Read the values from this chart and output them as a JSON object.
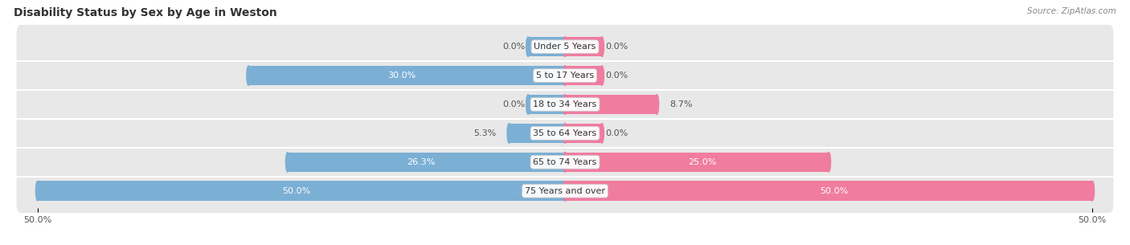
{
  "title": "Disability Status by Sex by Age in Weston",
  "source": "Source: ZipAtlas.com",
  "categories": [
    "Under 5 Years",
    "5 to 17 Years",
    "18 to 34 Years",
    "35 to 64 Years",
    "65 to 74 Years",
    "75 Years and over"
  ],
  "male_values": [
    0.0,
    30.0,
    0.0,
    5.3,
    26.3,
    50.0
  ],
  "female_values": [
    0.0,
    0.0,
    8.7,
    0.0,
    25.0,
    50.0
  ],
  "male_color": "#7bafd4",
  "female_color": "#f07ca0",
  "row_bg_color": "#ebebeb",
  "row_bg_color_alt": "#e2e2e2",
  "max_value": 50.0,
  "title_fontsize": 10,
  "source_fontsize": 7.5,
  "label_fontsize": 8,
  "category_fontsize": 8,
  "tick_fontsize": 8,
  "stub_value": 3.5
}
